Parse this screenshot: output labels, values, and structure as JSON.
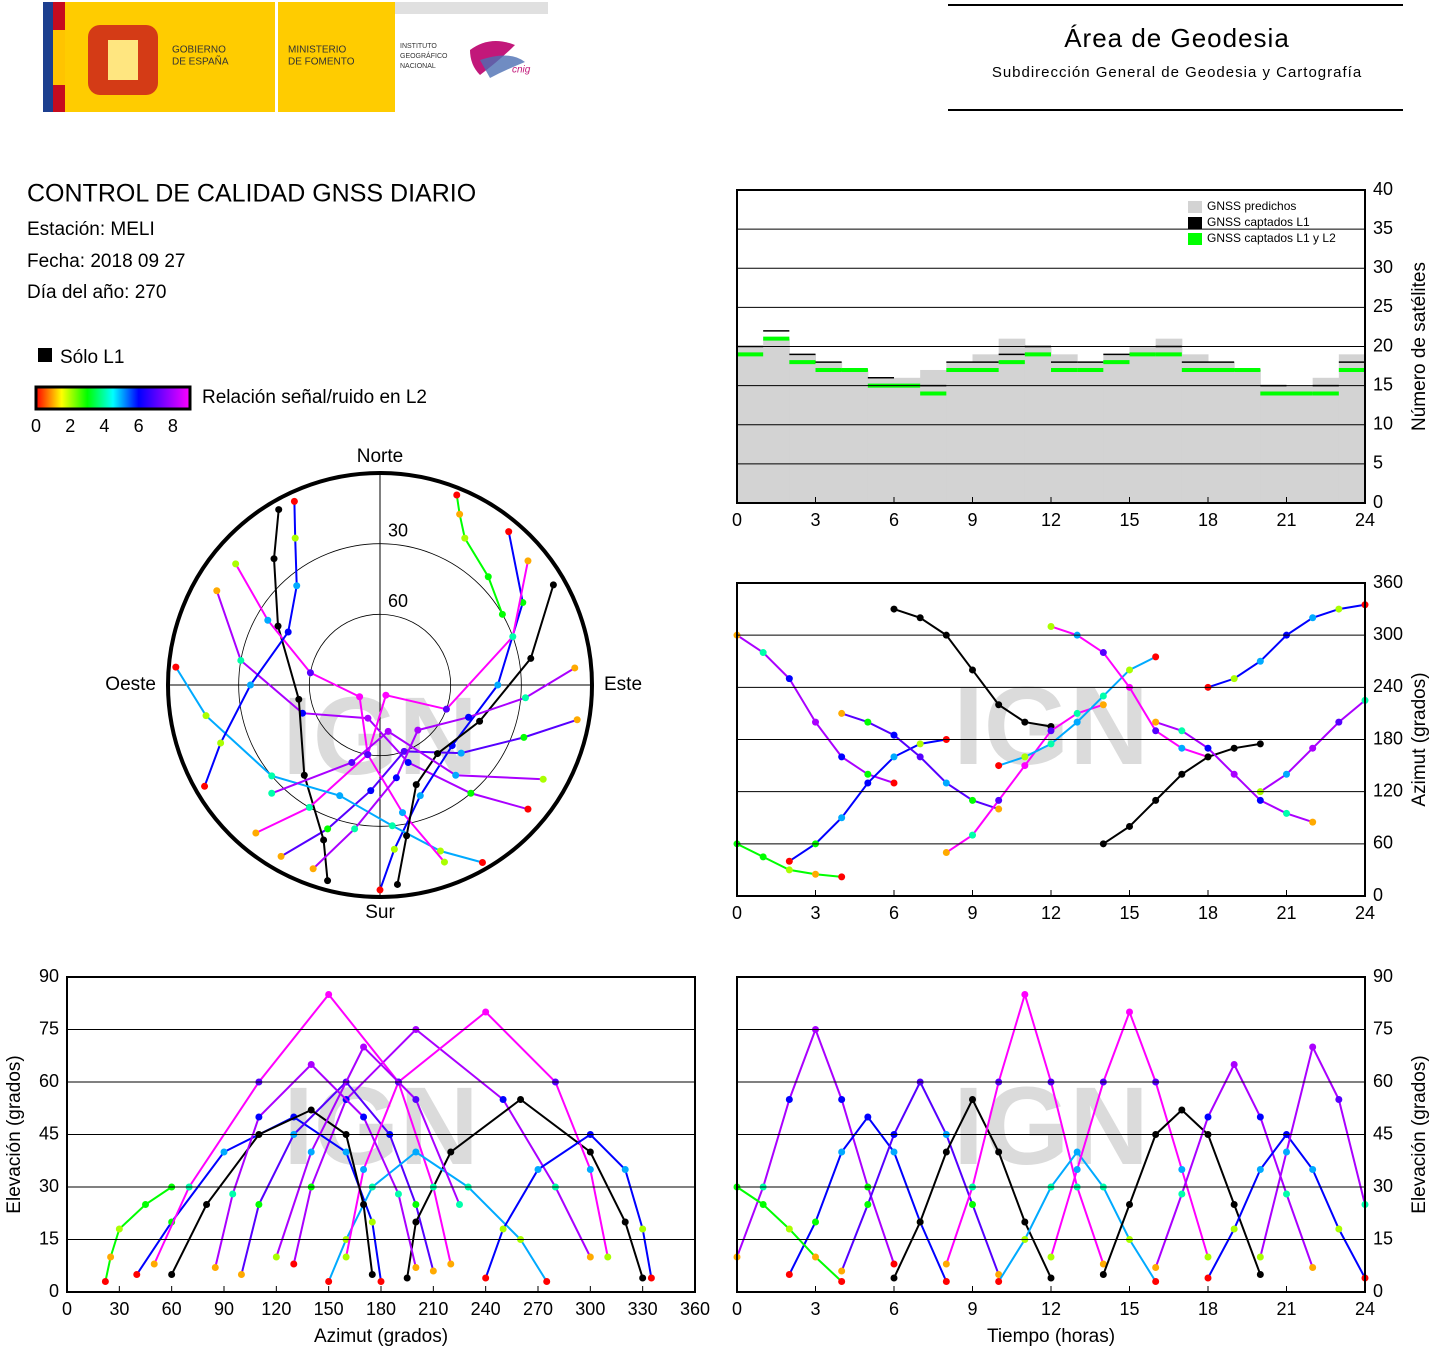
{
  "header": {
    "gov_text": [
      "GOBIERNO",
      "DE ESPAÑA"
    ],
    "ministry_text": [
      "MINISTERIO",
      "DE FOMENTO"
    ],
    "institute_text": [
      "INSTITUTO",
      "GEOGRÁFICO",
      "NACIONAL"
    ],
    "cnig": "cnig",
    "area_title": "Área de Geodesia",
    "area_subtitle": "Subdirección General de Geodesia y Cartografía"
  },
  "report": {
    "title": "CONTROL DE CALIDAD GNSS DIARIO",
    "station": "Estación: MELI",
    "date": "Fecha: 2018 09 27",
    "day_of_year": "Día del año: 270"
  },
  "watermark": "IGN",
  "chart_data": [
    {
      "type": "satellite-count",
      "ylabel": "Número de satélites",
      "xlim": [
        0,
        24
      ],
      "xticks": [
        0,
        3,
        6,
        9,
        12,
        15,
        18,
        21,
        24
      ],
      "ylim": [
        0,
        40
      ],
      "yticks": [
        0,
        5,
        10,
        15,
        20,
        25,
        30,
        35,
        40
      ],
      "grid": true,
      "legend": "upper right",
      "x": [
        0,
        1,
        2,
        3,
        4,
        5,
        6,
        7,
        8,
        9,
        10,
        11,
        12,
        13,
        14,
        15,
        16,
        17,
        18,
        19,
        20,
        21,
        22,
        23
      ],
      "series": [
        {
          "name": "GNSS predichos",
          "color": "#d3d3d3",
          "values": [
            20,
            21,
            19,
            18,
            17,
            16,
            16,
            17,
            18,
            19,
            21,
            20,
            19,
            18,
            19,
            20,
            21,
            19,
            18,
            17,
            15,
            15,
            16,
            19
          ]
        },
        {
          "name": "GNSS captados L1",
          "color": "#000000",
          "values": [
            20,
            22,
            19,
            18,
            17,
            16,
            15,
            15,
            18,
            18,
            19,
            20,
            18,
            18,
            19,
            19,
            20,
            18,
            18,
            17,
            15,
            14,
            15,
            18
          ]
        },
        {
          "name": "GNSS captados L1 y L2",
          "color": "#00ff00",
          "values": [
            19,
            21,
            18,
            17,
            17,
            15,
            15,
            14,
            17,
            17,
            18,
            19,
            17,
            17,
            18,
            19,
            19,
            17,
            17,
            17,
            14,
            14,
            14,
            17
          ]
        }
      ]
    },
    {
      "type": "skyplot",
      "directions": [
        "Norte",
        "Este",
        "Sur",
        "Oeste"
      ],
      "rings": [
        30,
        60
      ],
      "elevation_lim": [
        0,
        90
      ],
      "only_l1_label": "Sólo L1",
      "only_l1_color": "#000000",
      "colorbar_label": "Relación señal/ruido en L2",
      "clim": [
        0,
        9
      ],
      "colorbar_ticks": [
        0,
        2,
        4,
        6,
        8
      ],
      "colormap": [
        "#ff0000",
        "#ffff00",
        "#00ff00",
        "#00ffff",
        "#0000ff",
        "#8000ff",
        "#ff00ff"
      ],
      "passes": [
        {
          "time": [
            0,
            1,
            2,
            3,
            4,
            5,
            6
          ],
          "azimuth": [
            300,
            280,
            250,
            200,
            160,
            140,
            130
          ],
          "elevation": [
            10,
            30,
            55,
            75,
            55,
            30,
            8
          ],
          "snr": [
            1,
            4,
            6,
            8,
            6,
            3,
            0
          ]
        },
        {
          "time": [
            2,
            3,
            4,
            5,
            6,
            7,
            8
          ],
          "azimuth": [
            40,
            60,
            90,
            130,
            160,
            175,
            180
          ],
          "elevation": [
            5,
            20,
            40,
            50,
            40,
            20,
            3
          ],
          "snr": [
            0,
            3,
            5,
            6,
            5,
            2,
            0
          ]
        },
        {
          "time": [
            4,
            5,
            6,
            7,
            8,
            9,
            10
          ],
          "azimuth": [
            210,
            200,
            185,
            160,
            130,
            110,
            100
          ],
          "elevation": [
            6,
            25,
            45,
            60,
            45,
            25,
            5
          ],
          "snr": [
            1,
            3,
            6,
            7,
            5,
            3,
            1
          ]
        },
        {
          "time": [
            6,
            7,
            8,
            9,
            10,
            11,
            12
          ],
          "azimuth": [
            330,
            320,
            300,
            260,
            220,
            200,
            195
          ],
          "elevation": [
            4,
            20,
            40,
            55,
            40,
            20,
            4
          ],
          "snr": [
            null,
            null,
            null,
            null,
            null,
            null,
            null
          ]
        },
        {
          "time": [
            8,
            9,
            10,
            11,
            12,
            13,
            14
          ],
          "azimuth": [
            50,
            70,
            110,
            150,
            190,
            210,
            220
          ],
          "elevation": [
            8,
            30,
            60,
            85,
            60,
            30,
            8
          ],
          "snr": [
            1,
            4,
            7,
            9,
            7,
            4,
            1
          ]
        },
        {
          "time": [
            10,
            11,
            12,
            13,
            14,
            15,
            16
          ],
          "azimuth": [
            150,
            160,
            175,
            200,
            230,
            260,
            275
          ],
          "elevation": [
            3,
            15,
            30,
            40,
            30,
            15,
            3
          ],
          "snr": [
            0,
            2,
            4,
            5,
            4,
            2,
            0
          ]
        },
        {
          "time": [
            12,
            13,
            14,
            15,
            16,
            17,
            18
          ],
          "azimuth": [
            310,
            300,
            280,
            240,
            190,
            170,
            160
          ],
          "elevation": [
            10,
            35,
            60,
            80,
            60,
            35,
            10
          ],
          "snr": [
            2,
            5,
            7,
            9,
            7,
            5,
            2
          ]
        },
        {
          "time": [
            14,
            15,
            16,
            17,
            18,
            19,
            20
          ],
          "azimuth": [
            60,
            80,
            110,
            140,
            160,
            170,
            175
          ],
          "elevation": [
            5,
            25,
            45,
            52,
            45,
            25,
            5
          ],
          "snr": [
            null,
            null,
            null,
            null,
            null,
            null,
            null
          ]
        },
        {
          "time": [
            16,
            17,
            18,
            19,
            20,
            21,
            22
          ],
          "azimuth": [
            200,
            190,
            170,
            140,
            110,
            95,
            85
          ],
          "elevation": [
            7,
            28,
            50,
            65,
            50,
            28,
            7
          ],
          "snr": [
            1,
            4,
            6,
            8,
            6,
            4,
            1
          ]
        },
        {
          "time": [
            18,
            19,
            20,
            21,
            22,
            23,
            24
          ],
          "azimuth": [
            240,
            250,
            270,
            300,
            320,
            330,
            335
          ],
          "elevation": [
            4,
            18,
            35,
            45,
            35,
            18,
            4
          ],
          "snr": [
            0,
            2,
            5,
            6,
            5,
            2,
            0
          ]
        },
        {
          "time": [
            20,
            21,
            22,
            23,
            24
          ],
          "azimuth": [
            120,
            140,
            170,
            200,
            225
          ],
          "elevation": [
            10,
            40,
            70,
            55,
            25
          ],
          "snr": [
            2,
            5,
            8,
            7,
            4
          ]
        },
        {
          "time": [
            0,
            1,
            2,
            3,
            4
          ],
          "azimuth": [
            60,
            45,
            30,
            25,
            22
          ],
          "elevation": [
            30,
            25,
            18,
            10,
            3
          ],
          "snr": [
            3,
            3,
            2,
            1,
            0
          ]
        }
      ]
    },
    {
      "type": "azimuth-time",
      "ylabel": "Azimut (grados)",
      "xlim": [
        0,
        24
      ],
      "xticks": [
        0,
        3,
        6,
        9,
        12,
        15,
        18,
        21,
        24
      ],
      "ylim": [
        0,
        360
      ],
      "yticks": [
        0,
        60,
        120,
        180,
        240,
        300,
        360
      ],
      "grid": true
    },
    {
      "type": "elevation-azimuth",
      "xlabel": "Azimut (grados)",
      "ylabel": "Elevación (grados)",
      "xlim": [
        0,
        360
      ],
      "xticks": [
        0,
        30,
        60,
        90,
        120,
        150,
        180,
        210,
        240,
        270,
        300,
        330,
        360
      ],
      "ylim": [
        0,
        90
      ],
      "yticks": [
        0,
        15,
        30,
        45,
        60,
        75,
        90
      ],
      "grid": true
    },
    {
      "type": "elevation-time",
      "xlabel": "Tiempo (horas)",
      "ylabel": "Elevación (grados)",
      "xlim": [
        0,
        24
      ],
      "xticks": [
        0,
        3,
        6,
        9,
        12,
        15,
        18,
        21,
        24
      ],
      "ylim": [
        0,
        90
      ],
      "yticks": [
        0,
        15,
        30,
        45,
        60,
        75,
        90
      ],
      "grid": true
    }
  ]
}
